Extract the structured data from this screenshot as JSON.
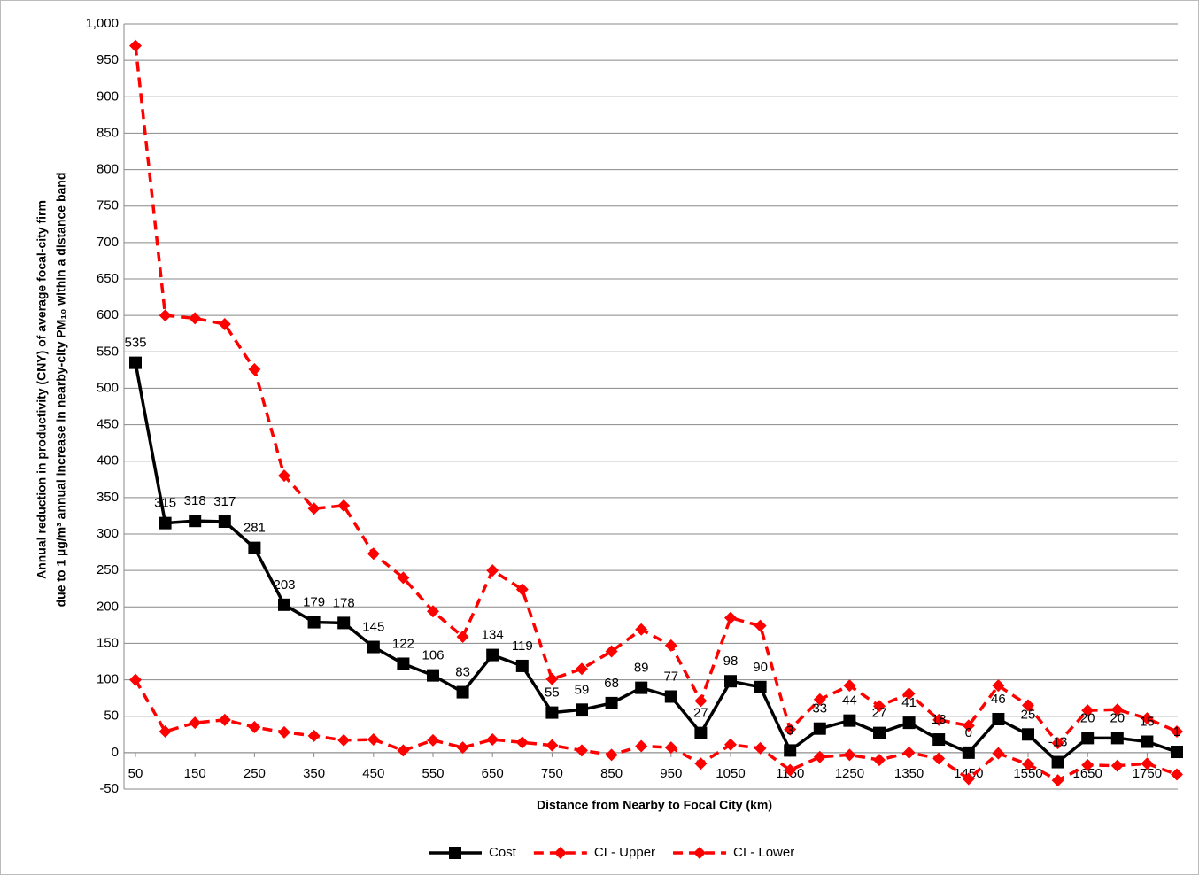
{
  "chart_data": {
    "type": "line",
    "ylabel": [
      "Annual reduction in productivity  (CNY) of average focal-city firm",
      "due to 1 µg/m³ annual increase in nearby-city PM₁₀ within a distance band"
    ],
    "xlabel": "Distance from Nearby to Focal City (km)",
    "x": [
      50,
      100,
      150,
      200,
      250,
      300,
      350,
      400,
      450,
      500,
      550,
      600,
      650,
      700,
      750,
      800,
      850,
      900,
      950,
      1000,
      1050,
      1100,
      1150,
      1200,
      1250,
      1300,
      1350,
      1400,
      1450,
      1500,
      1550,
      1600,
      1650,
      1700,
      1750,
      1800
    ],
    "xlim": [
      50,
      1800
    ],
    "xticks": [
      50,
      150,
      250,
      350,
      450,
      550,
      650,
      750,
      850,
      950,
      1050,
      1150,
      1250,
      1350,
      1450,
      1550,
      1650,
      1750
    ],
    "ylim": [
      -50,
      1000
    ],
    "yticks": [
      -50,
      0,
      50,
      100,
      150,
      200,
      250,
      300,
      350,
      400,
      450,
      500,
      550,
      600,
      650,
      700,
      750,
      800,
      850,
      900,
      950,
      {
        "value": 1000,
        "label": "1,000"
      }
    ],
    "grid": true,
    "legend": "bottom",
    "series": [
      {
        "name": "Cost",
        "color": "#000000",
        "dashed": false,
        "marker": "square",
        "show_labels": true,
        "values": [
          535,
          315,
          318,
          317,
          281,
          203,
          179,
          178,
          145,
          122,
          106,
          83,
          134,
          119,
          55,
          59,
          68,
          89,
          77,
          27,
          98,
          90,
          3,
          33,
          44,
          27,
          41,
          18,
          0,
          46,
          25,
          -13,
          20,
          20,
          15,
          1
        ]
      },
      {
        "name": "CI - Upper",
        "color": "#ff0000",
        "dashed": true,
        "marker": "diamond",
        "show_labels": false,
        "values": [
          970,
          600,
          596,
          588,
          526,
          380,
          335,
          339,
          273,
          240,
          194,
          159,
          250,
          224,
          101,
          115,
          139,
          169,
          147,
          71,
          185,
          174,
          32,
          73,
          92,
          64,
          81,
          45,
          37,
          92,
          65,
          13,
          58,
          59,
          47,
          29
        ]
      },
      {
        "name": "CI - Lower",
        "color": "#ff0000",
        "dashed": true,
        "marker": "diamond",
        "show_labels": false,
        "values": [
          100,
          29,
          41,
          45,
          35,
          28,
          23,
          17,
          18,
          3,
          17,
          7,
          18,
          14,
          10,
          3,
          -3,
          9,
          7,
          -15,
          11,
          6,
          -24,
          -6,
          -3,
          -10,
          0,
          -8,
          -36,
          -1,
          -16,
          -38,
          -17,
          -18,
          -15,
          -30
        ]
      }
    ]
  }
}
